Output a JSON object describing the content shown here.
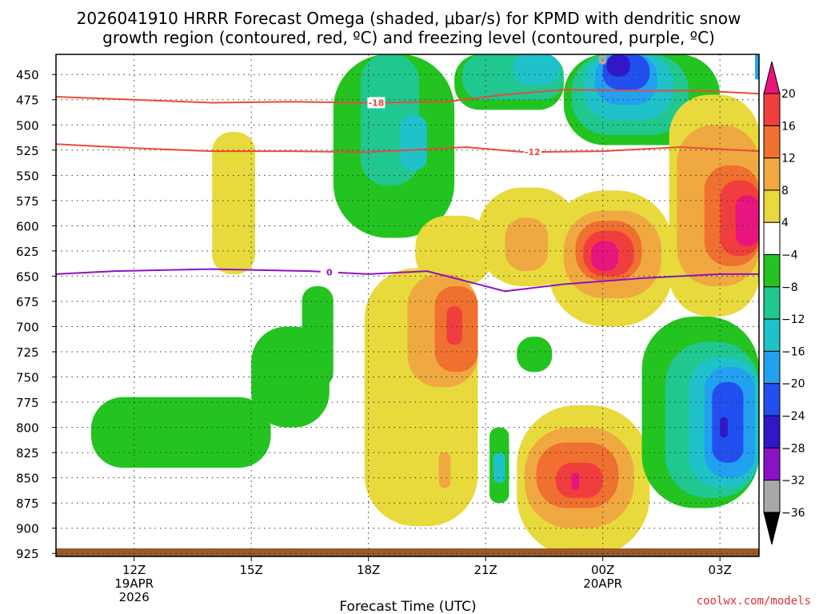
{
  "title_line1": "2026041910 HRRR Forecast Omega (shaded, μbar/s) for KPMD with dendritic snow",
  "title_line2": "growth region (contoured, red, ºC) and freezing level (contoured, purple, ºC)",
  "credit": "coolwx.com/models",
  "chart_data": {
    "type": "heatmap",
    "title": "2026041910 HRRR Forecast Omega (shaded, μbar/s) for KPMD with dendritic snow growth region (contoured, red, ºC) and freezing level (contoured, purple, ºC)",
    "xlabel": "Forecast Time (UTC)",
    "ylabel": "",
    "x_range_hours": [
      10,
      28
    ],
    "x_ticks": [
      {
        "hour": 12,
        "label": "12Z",
        "sub": [
          "19APR",
          "2026"
        ]
      },
      {
        "hour": 15,
        "label": "15Z",
        "sub": []
      },
      {
        "hour": 18,
        "label": "18Z",
        "sub": []
      },
      {
        "hour": 21,
        "label": "21Z",
        "sub": []
      },
      {
        "hour": 24,
        "label": "00Z",
        "sub": [
          "20APR"
        ]
      },
      {
        "hour": 27,
        "label": "03Z",
        "sub": []
      }
    ],
    "y_range_mb": [
      430,
      928
    ],
    "y_ticks": [
      450,
      475,
      500,
      525,
      550,
      575,
      600,
      625,
      650,
      675,
      700,
      725,
      750,
      775,
      800,
      825,
      850,
      875,
      900,
      925
    ],
    "colorbar": {
      "labels": [
        "20",
        "16",
        "12",
        "8",
        "4",
        "−4",
        "−8",
        "−12",
        "−16",
        "−20",
        "−24",
        "−28",
        "−32",
        "−36"
      ],
      "colors": [
        "#e8157f",
        "#f03e3e",
        "#f07030",
        "#f0a840",
        "#e8d93c",
        "#ffffff",
        "#23c41f",
        "#20c78f",
        "#1fc2c8",
        "#22a1f0",
        "#2250f0",
        "#3018c8",
        "#8a12c4",
        "#a8a8a8"
      ]
    },
    "omega_cells": [
      {
        "t0": 17.1,
        "t1": 20.2,
        "p0": 430,
        "p1": 612,
        "value": -6
      },
      {
        "t0": 20.2,
        "t1": 23.0,
        "p0": 430,
        "p1": 485,
        "value": -6
      },
      {
        "t0": 23.0,
        "t1": 27.0,
        "p0": 430,
        "p1": 520,
        "value": -6
      },
      {
        "t0": 17.8,
        "t1": 19.3,
        "p0": 430,
        "p1": 560,
        "value": -10
      },
      {
        "t0": 20.4,
        "t1": 23.0,
        "p0": 430,
        "p1": 475,
        "value": -10
      },
      {
        "t0": 23.2,
        "t1": 26.2,
        "p0": 430,
        "p1": 510,
        "value": -10
      },
      {
        "t0": 21.7,
        "t1": 22.9,
        "p0": 430,
        "p1": 460,
        "value": -14
      },
      {
        "t0": 23.5,
        "t1": 25.8,
        "p0": 430,
        "p1": 495,
        "value": -14
      },
      {
        "t0": 18.8,
        "t1": 19.5,
        "p0": 490,
        "p1": 545,
        "value": -14
      },
      {
        "t0": 23.8,
        "t1": 25.4,
        "p0": 430,
        "p1": 480,
        "value": -18
      },
      {
        "t0": 24.0,
        "t1": 25.2,
        "p0": 430,
        "p1": 465,
        "value": -22
      },
      {
        "t0": 24.1,
        "t1": 24.7,
        "p0": 430,
        "p1": 452,
        "value": -26
      },
      {
        "t0": 23.9,
        "t1": 24.1,
        "p0": 430,
        "p1": 440,
        "value": -34
      },
      {
        "t0": 27.9,
        "t1": 28.0,
        "p0": 430,
        "p1": 455,
        "value": -18
      },
      {
        "t0": 14.0,
        "t1": 15.1,
        "p0": 507,
        "p1": 648,
        "value": 6
      },
      {
        "t0": 17.9,
        "t1": 20.8,
        "p0": 642,
        "p1": 898,
        "value": 6
      },
      {
        "t0": 19.2,
        "t1": 21.2,
        "p0": 590,
        "p1": 660,
        "value": 6
      },
      {
        "t0": 20.8,
        "t1": 23.4,
        "p0": 562,
        "p1": 660,
        "value": 6
      },
      {
        "t0": 22.6,
        "t1": 25.8,
        "p0": 565,
        "p1": 700,
        "value": 6
      },
      {
        "t0": 25.7,
        "t1": 28.0,
        "p0": 470,
        "p1": 690,
        "value": 6
      },
      {
        "t0": 21.8,
        "t1": 25.2,
        "p0": 778,
        "p1": 928,
        "value": 6
      },
      {
        "t0": 19.0,
        "t1": 20.8,
        "p0": 648,
        "p1": 760,
        "value": 10
      },
      {
        "t0": 19.8,
        "t1": 20.1,
        "p0": 825,
        "p1": 860,
        "value": 10
      },
      {
        "t0": 21.5,
        "t1": 22.6,
        "p0": 592,
        "p1": 645,
        "value": 10
      },
      {
        "t0": 23.0,
        "t1": 25.5,
        "p0": 585,
        "p1": 672,
        "value": 10
      },
      {
        "t0": 25.9,
        "t1": 28.0,
        "p0": 500,
        "p1": 660,
        "value": 10
      },
      {
        "t0": 22.0,
        "t1": 24.8,
        "p0": 800,
        "p1": 900,
        "value": 10
      },
      {
        "t0": 19.7,
        "t1": 20.8,
        "p0": 660,
        "p1": 745,
        "value": 14
      },
      {
        "t0": 23.3,
        "t1": 25.0,
        "p0": 595,
        "p1": 655,
        "value": 14
      },
      {
        "t0": 26.6,
        "t1": 28.0,
        "p0": 540,
        "p1": 640,
        "value": 14
      },
      {
        "t0": 22.3,
        "t1": 24.4,
        "p0": 815,
        "p1": 880,
        "value": 14
      },
      {
        "t0": 20.0,
        "t1": 20.4,
        "p0": 680,
        "p1": 718,
        "value": 18
      },
      {
        "t0": 23.5,
        "t1": 24.8,
        "p0": 605,
        "p1": 650,
        "value": 18
      },
      {
        "t0": 27.0,
        "t1": 28.0,
        "p0": 555,
        "p1": 630,
        "value": 18
      },
      {
        "t0": 22.8,
        "t1": 24.0,
        "p0": 835,
        "p1": 870,
        "value": 18
      },
      {
        "t0": 23.7,
        "t1": 24.4,
        "p0": 615,
        "p1": 645,
        "value": 22
      },
      {
        "t0": 27.4,
        "t1": 28.0,
        "p0": 570,
        "p1": 620,
        "value": 22
      },
      {
        "t0": 23.2,
        "t1": 23.4,
        "p0": 845,
        "p1": 862,
        "value": 22
      },
      {
        "t0": 10.9,
        "t1": 15.5,
        "p0": 770,
        "p1": 840,
        "value": -6
      },
      {
        "t0": 15.0,
        "t1": 17.0,
        "p0": 700,
        "p1": 800,
        "value": -6
      },
      {
        "t0": 16.3,
        "t1": 17.1,
        "p0": 660,
        "p1": 760,
        "value": -6
      },
      {
        "t0": 21.1,
        "t1": 21.6,
        "p0": 800,
        "p1": 875,
        "value": -6
      },
      {
        "t0": 21.8,
        "t1": 22.7,
        "p0": 710,
        "p1": 745,
        "value": -6
      },
      {
        "t0": 25.0,
        "t1": 28.0,
        "p0": 690,
        "p1": 880,
        "value": -6
      },
      {
        "t0": 21.2,
        "t1": 21.5,
        "p0": 825,
        "p1": 855,
        "value": -14
      },
      {
        "t0": 25.6,
        "t1": 28.0,
        "p0": 715,
        "p1": 870,
        "value": -10
      },
      {
        "t0": 26.2,
        "t1": 28.0,
        "p0": 730,
        "p1": 860,
        "value": -14
      },
      {
        "t0": 26.6,
        "t1": 27.9,
        "p0": 740,
        "p1": 850,
        "value": -18
      },
      {
        "t0": 26.8,
        "t1": 27.6,
        "p0": 755,
        "p1": 835,
        "value": -22
      },
      {
        "t0": 27.0,
        "t1": 27.2,
        "p0": 790,
        "p1": 810,
        "value": -26
      }
    ],
    "dgz_18C": {
      "label": "-18",
      "points": [
        [
          10,
          472
        ],
        [
          12,
          475
        ],
        [
          14,
          478
        ],
        [
          16,
          477
        ],
        [
          18,
          478
        ],
        [
          20,
          477
        ],
        [
          21.5,
          470
        ],
        [
          23,
          465
        ],
        [
          25,
          466
        ],
        [
          26.5,
          466
        ],
        [
          28,
          469
        ]
      ]
    },
    "dgz_12C": {
      "label": "-12",
      "points": [
        [
          10,
          519
        ],
        [
          12,
          523
        ],
        [
          14,
          526
        ],
        [
          16,
          526
        ],
        [
          18,
          527
        ],
        [
          20.5,
          522
        ],
        [
          22,
          527
        ],
        [
          24,
          526
        ],
        [
          26,
          522
        ],
        [
          28,
          526
        ]
      ]
    },
    "freezing_level": {
      "label": "0",
      "points": [
        [
          10,
          648
        ],
        [
          11.5,
          645
        ],
        [
          14,
          643
        ],
        [
          16.5,
          645
        ],
        [
          18,
          648
        ],
        [
          19.5,
          645
        ],
        [
          20.5,
          655
        ],
        [
          21.5,
          665
        ],
        [
          23,
          658
        ],
        [
          25,
          652
        ],
        [
          27,
          648
        ],
        [
          28,
          648
        ]
      ]
    },
    "ground_level_mb": 920
  }
}
